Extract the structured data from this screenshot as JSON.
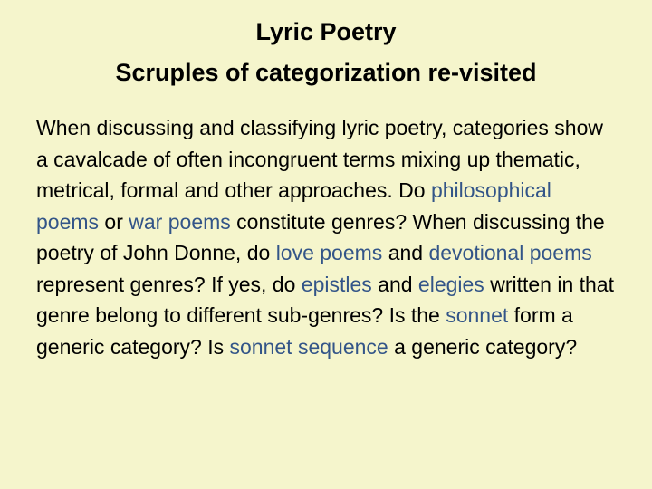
{
  "title": "Lyric Poetry",
  "subtitle": "Scruples of categorization re-visited",
  "body": {
    "t1": "When discussing and classifying lyric poetry, categories show a cavalcade of often incongruent terms mixing up thematic, metrical, formal and other approaches. Do ",
    "l1": "philosophical poems",
    "t2": " or ",
    "l2": "war poems",
    "t3": " constitute genres? When discussing the poetry of John Donne, do ",
    "l3": "love poems",
    "t4": " and ",
    "l4": "devotional poems",
    "t5": " represent genres? If yes, do ",
    "l5": "epistles",
    "t6": " and ",
    "l6": "elegies",
    "t7": " written in that genre belong to different sub-genres? Is the ",
    "l7": "sonnet",
    "t8": " form a generic category? Is ",
    "l8": "sonnet sequence",
    "t9": " a generic category?"
  },
  "colors": {
    "background": "#f5f5cc",
    "text": "#000000",
    "link": "#335588"
  }
}
